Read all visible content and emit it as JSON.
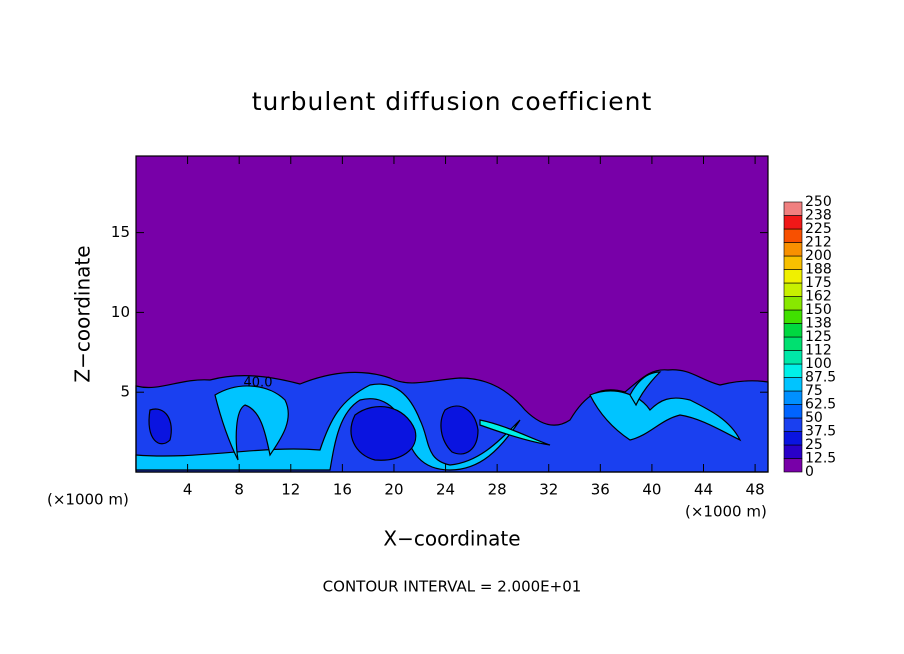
{
  "chart_data": {
    "type": "contour",
    "title": "turbulent diffusion coefficient",
    "xlabel": "X−coordinate",
    "ylabel": "Z−coordinate",
    "x_unit": "(×1000 m)",
    "footer": "CONTOUR INTERVAL = 2.000E+01",
    "contour_label": "40.0",
    "xlim": [
      0,
      49
    ],
    "ylim": [
      0,
      19.8
    ],
    "xticks": [
      4,
      8,
      12,
      16,
      20,
      24,
      28,
      32,
      36,
      40,
      44,
      48
    ],
    "yticks": [
      5,
      10,
      15
    ],
    "colorbar": {
      "levels": [
        0,
        12.5,
        25,
        37.5,
        50,
        62.5,
        75,
        87.5,
        100,
        112,
        125,
        138,
        150,
        162,
        175,
        188,
        200,
        212,
        225,
        238,
        250
      ],
      "colors": [
        "#7800a8",
        "#2a00c8",
        "#0a14e0",
        "#1a40f0",
        "#0064ff",
        "#0090ff",
        "#00c4ff",
        "#00f0e8",
        "#00e8a8",
        "#00e070",
        "#00d840",
        "#40e000",
        "#88e800",
        "#c8f000",
        "#f0f000",
        "#f8c000",
        "#f89000",
        "#f85000",
        "#f01818",
        "#f08080"
      ]
    }
  }
}
